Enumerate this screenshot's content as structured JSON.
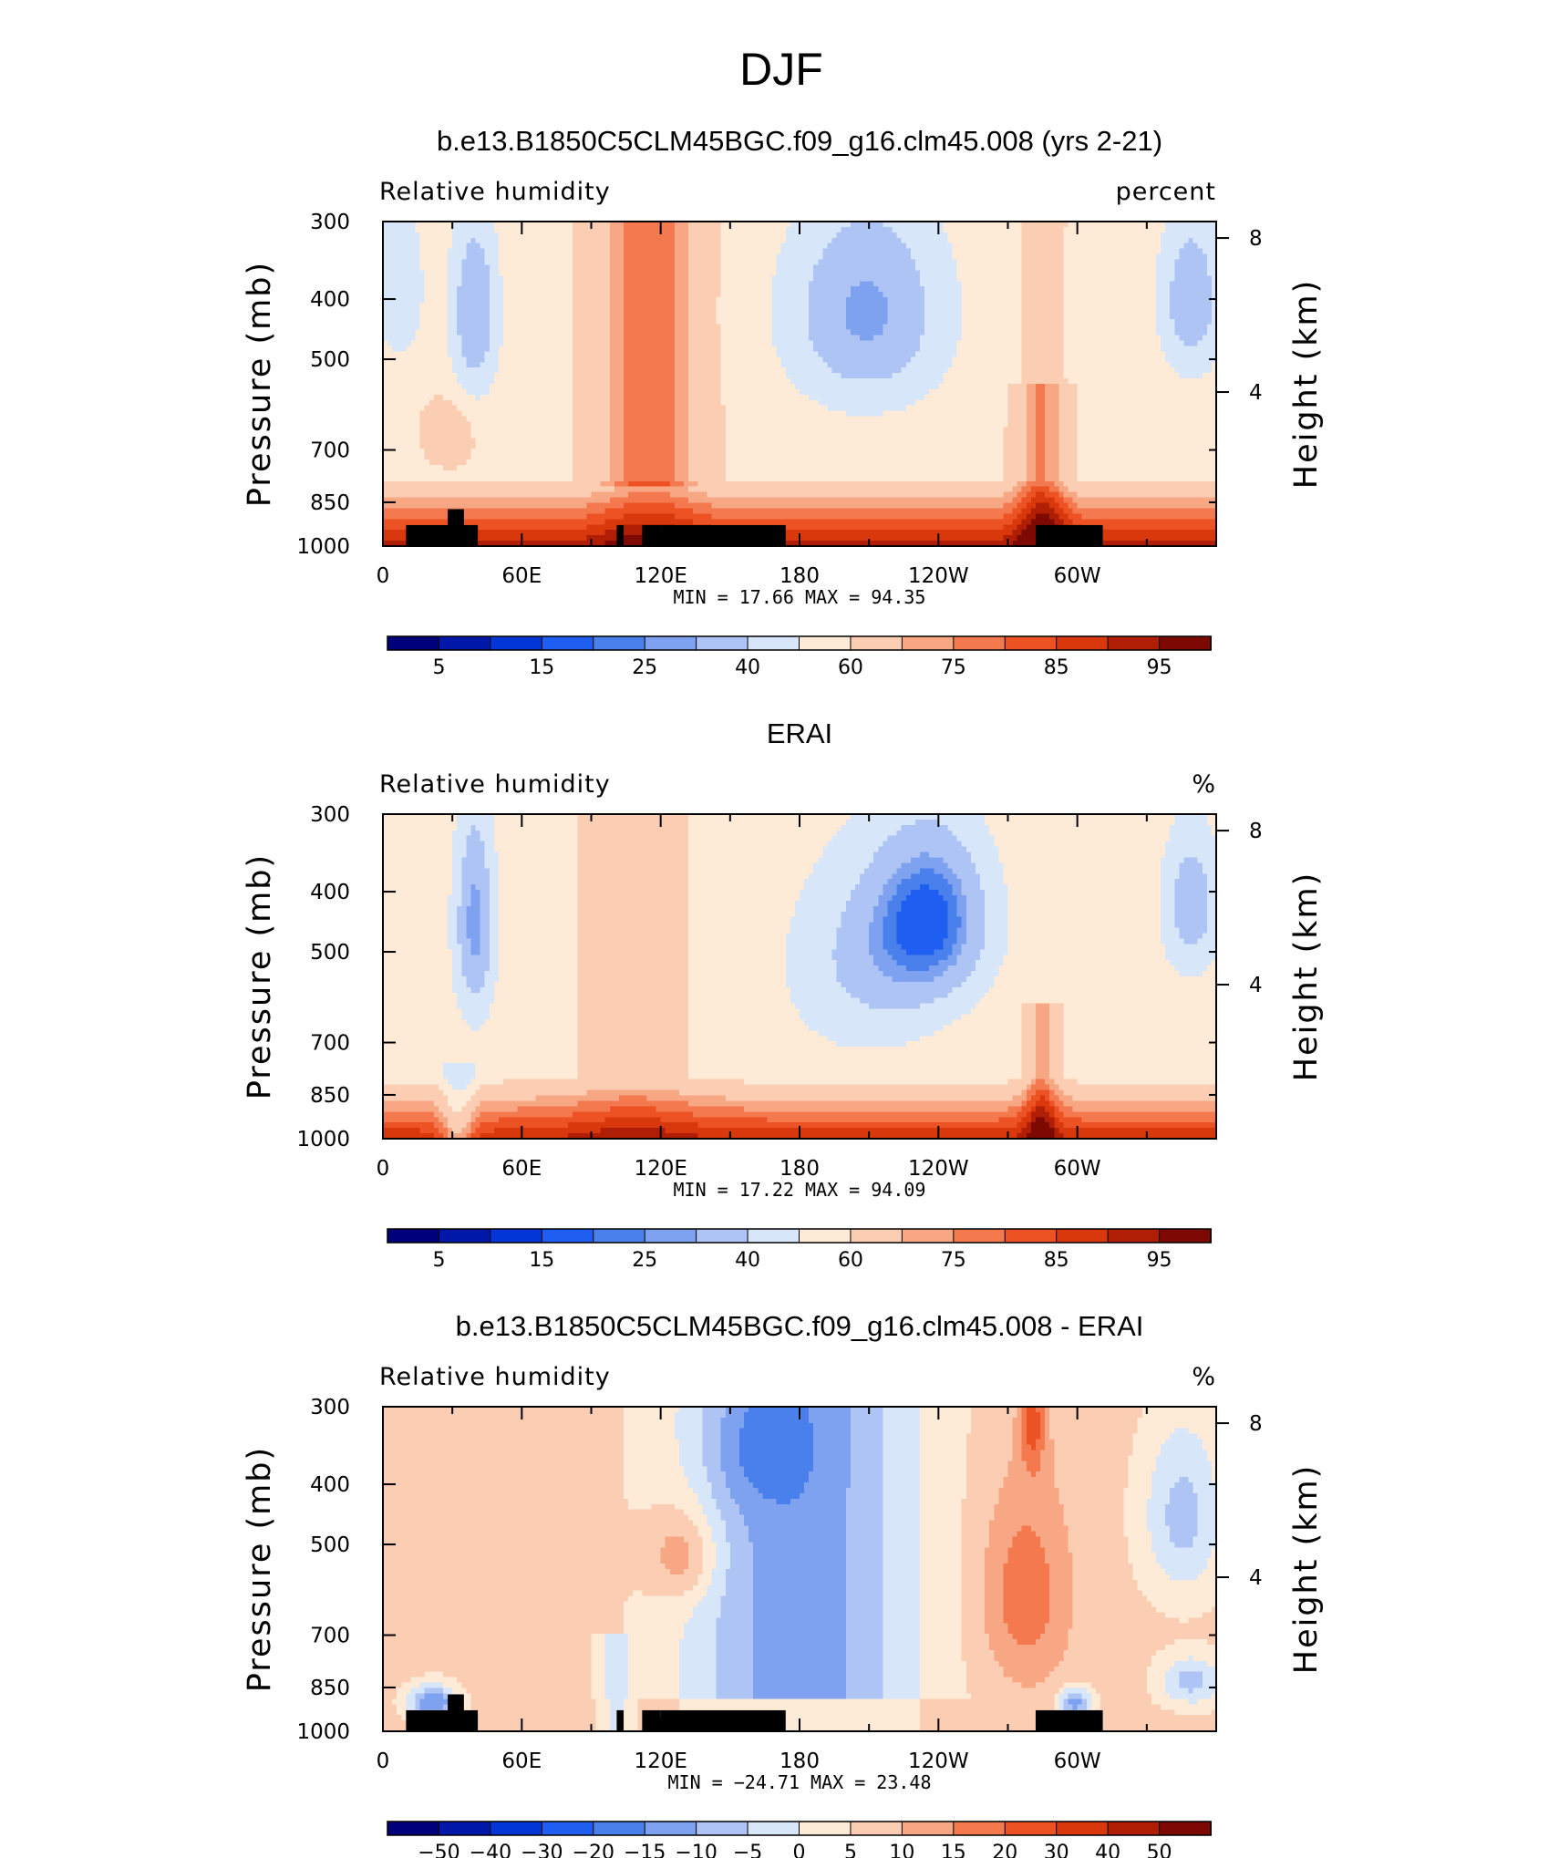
{
  "figure": {
    "title": "DJF"
  },
  "chart_data": [
    {
      "type": "heatmap",
      "title": "b.e13.B1850C5CLM45BGC.f09_g16.clm45.008 (yrs 2-21)",
      "left_label": "Relative humidity",
      "units": "percent",
      "ylabel": "Pressure (mb)",
      "ylabel_right": "Height (km)",
      "xticks": [
        "0",
        "60E",
        "120E",
        "180",
        "120W",
        "60W"
      ],
      "yticks": [
        "300",
        "400",
        "500",
        "700",
        "850",
        "1000"
      ],
      "yticks_right": [
        "8",
        "4"
      ],
      "stats_text": "MIN =   17.66   MAX =   94.35",
      "min": 17.66,
      "max": 94.35,
      "colorbar_labels": [
        "5",
        "15",
        "25",
        "40",
        "60",
        "75",
        "85",
        "95"
      ],
      "colorbar_levels": [
        5,
        10,
        15,
        20,
        25,
        30,
        40,
        50,
        60,
        70,
        75,
        80,
        85,
        90,
        95
      ],
      "palette": [
        "#00007a",
        "#0018a8",
        "#0336d6",
        "#1e5ef0",
        "#4a80ec",
        "#7ea2f0",
        "#aec4f4",
        "#d8e6fa",
        "#fdebd8",
        "#fbcdb2",
        "#f8a784",
        "#f4794f",
        "#ec5223",
        "#d8380c",
        "#b01e06",
        "#7c0a02"
      ],
      "topography": "land-shown"
    },
    {
      "type": "heatmap",
      "title": "ERAI",
      "left_label": "Relative humidity",
      "units": "%",
      "ylabel": "Pressure (mb)",
      "ylabel_right": "Height (km)",
      "xticks": [
        "0",
        "60E",
        "120E",
        "180",
        "120W",
        "60W"
      ],
      "yticks": [
        "300",
        "400",
        "500",
        "700",
        "850",
        "1000"
      ],
      "yticks_right": [
        "8",
        "4"
      ],
      "stats_text": "MIN =   17.22   MAX =   94.09",
      "min": 17.22,
      "max": 94.09,
      "colorbar_labels": [
        "5",
        "15",
        "25",
        "40",
        "60",
        "75",
        "85",
        "95"
      ],
      "colorbar_levels": [
        5,
        10,
        15,
        20,
        25,
        30,
        40,
        50,
        60,
        70,
        75,
        80,
        85,
        90,
        95
      ],
      "palette": [
        "#00007a",
        "#0018a8",
        "#0336d6",
        "#1e5ef0",
        "#4a80ec",
        "#7ea2f0",
        "#aec4f4",
        "#d8e6fa",
        "#fdebd8",
        "#fbcdb2",
        "#f8a784",
        "#f4794f",
        "#ec5223",
        "#d8380c",
        "#b01e06",
        "#7c0a02"
      ],
      "topography": "none"
    },
    {
      "type": "heatmap",
      "title": "b.e13.B1850C5CLM45BGC.f09_g16.clm45.008 - ERAI",
      "left_label": "Relative humidity",
      "units": "%",
      "ylabel": "Pressure (mb)",
      "ylabel_right": "Height (km)",
      "xticks": [
        "0",
        "60E",
        "120E",
        "180",
        "120W",
        "60W"
      ],
      "yticks": [
        "300",
        "400",
        "500",
        "700",
        "850",
        "1000"
      ],
      "yticks_right": [
        "8",
        "4"
      ],
      "stats_text": "MIN = −24.71   MAX =   23.48",
      "min": -24.71,
      "max": 23.48,
      "colorbar_labels": [
        "−50",
        "−40",
        "−30",
        "−20",
        "−15",
        "−10",
        "−5",
        "0",
        "5",
        "10",
        "15",
        "20",
        "30",
        "40",
        "50"
      ],
      "colorbar_levels": [
        -50,
        -40,
        -30,
        -20,
        -15,
        -10,
        -5,
        0,
        5,
        10,
        15,
        20,
        30,
        40,
        50
      ],
      "palette": [
        "#00007a",
        "#0018a8",
        "#0336d6",
        "#1e5ef0",
        "#4a80ec",
        "#7ea2f0",
        "#aec4f4",
        "#d8e6fa",
        "#fdebd8",
        "#fbcdb2",
        "#f8a784",
        "#f4794f",
        "#ec5223",
        "#d8380c",
        "#b01e06",
        "#7c0a02"
      ],
      "topography": "land-shown"
    }
  ]
}
